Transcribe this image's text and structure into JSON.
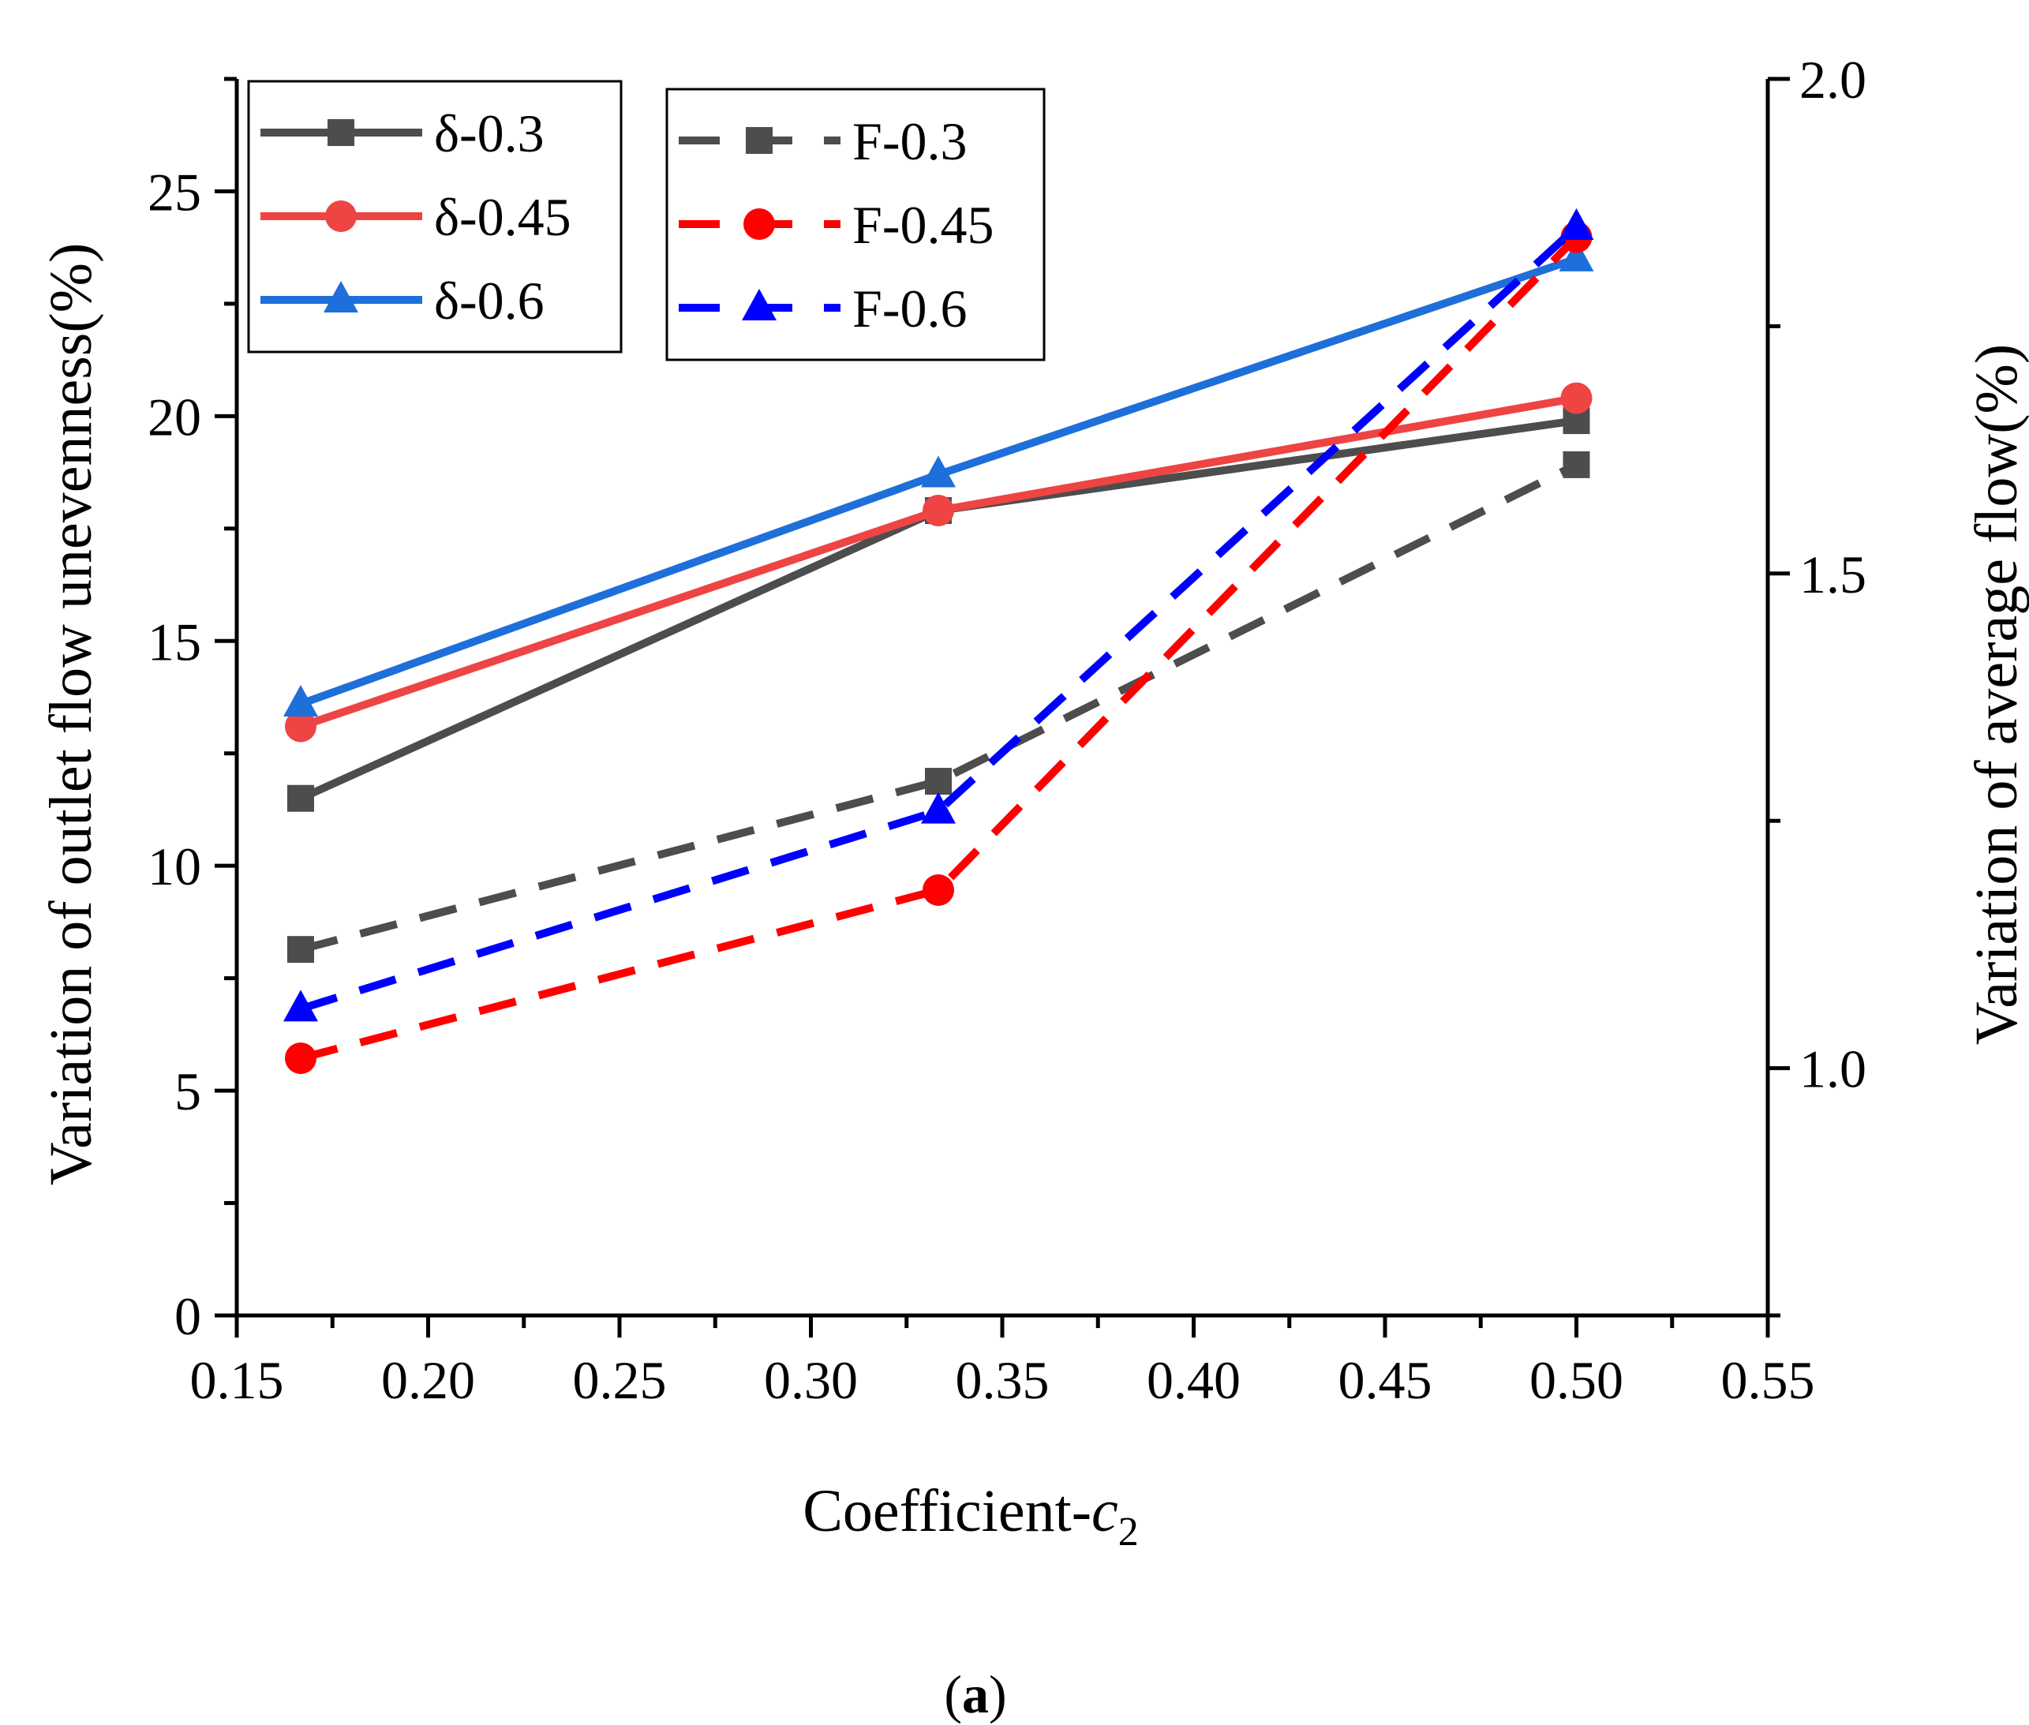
{
  "chart_data": {
    "type": "line",
    "xlabel": "Coefficient-",
    "xlabel_var": "c",
    "xlabel_sub": "2",
    "ylabel_left": "Variation of outlet flow unevenness(%)",
    "ylabel_right": "Variation of  average flow(%)",
    "caption_open": "(",
    "caption_letter": "a",
    "caption_close": ")",
    "xlim": [
      0.15,
      0.55
    ],
    "ylim_left": [
      0,
      27.5
    ],
    "ylim_right": [
      0.75,
      2.0
    ],
    "x_ticks": [
      "0.15",
      "0.20",
      "0.25",
      "0.30",
      "0.35",
      "0.40",
      "0.45",
      "0.50",
      "0.55"
    ],
    "x_tick_values": [
      0.15,
      0.2,
      0.25,
      0.3,
      0.35,
      0.4,
      0.45,
      0.5,
      0.55
    ],
    "y_left_ticks": [
      "0",
      "5",
      "10",
      "15",
      "20",
      "25"
    ],
    "y_left_tick_values": [
      0,
      5,
      10,
      15,
      20,
      25
    ],
    "y_right_ticks": [
      "1.0",
      "1.5",
      "2.0"
    ],
    "y_right_tick_values": [
      1.0,
      1.5,
      2.0
    ],
    "x": [
      0.1667,
      0.3333,
      0.5
    ],
    "series": [
      {
        "name": "δ-0.3",
        "axis": "left",
        "style": "solid",
        "marker": "square",
        "color": "#4d4d4d",
        "values": [
          11.5,
          17.9,
          19.9
        ]
      },
      {
        "name": "δ-0.45",
        "axis": "left",
        "style": "solid",
        "marker": "circle",
        "color": "#ee4444",
        "values": [
          13.1,
          17.9,
          20.4
        ]
      },
      {
        "name": "δ-0.6",
        "axis": "left",
        "style": "solid",
        "marker": "triangle",
        "color": "#1e6fd9",
        "values": [
          13.6,
          18.7,
          23.5
        ]
      },
      {
        "name": "F-0.3",
        "axis": "right",
        "style": "dashed",
        "marker": "square",
        "color": "#4d4d4d",
        "values": [
          1.12,
          1.29,
          1.61
        ]
      },
      {
        "name": "F-0.45",
        "axis": "right",
        "style": "dashed",
        "marker": "circle",
        "color": "#ff0000",
        "values": [
          1.01,
          1.18,
          1.84
        ]
      },
      {
        "name": "F-0.6",
        "axis": "right",
        "style": "dashed",
        "marker": "triangle",
        "color": "#0000ff",
        "values": [
          1.06,
          1.26,
          1.85
        ]
      }
    ],
    "legend_left": [
      "δ-0.3",
      "δ-0.45",
      "δ-0.6"
    ],
    "legend_right": [
      "F-0.3",
      "F-0.45",
      "F-0.6"
    ],
    "legend_placement": "top-left"
  }
}
